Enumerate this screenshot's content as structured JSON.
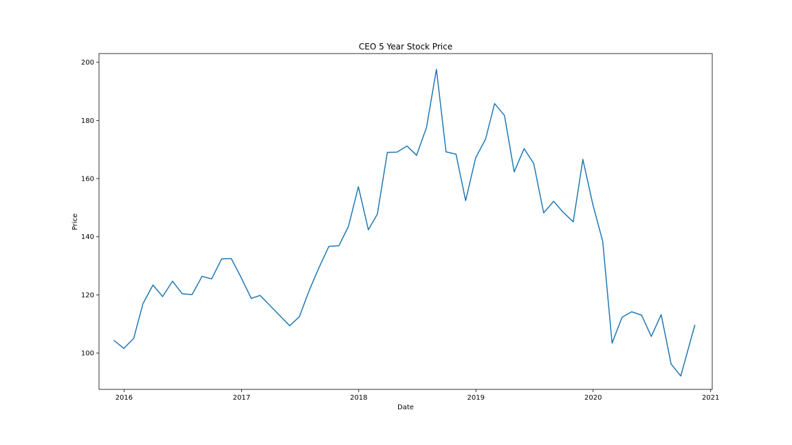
{
  "chart_data": {
    "type": "line",
    "title": "CEO 5 Year Stock Price",
    "xlabel": "Date",
    "ylabel": "Price",
    "grid": false,
    "legend": false,
    "color": "#1f77b4",
    "xlim": [
      "2015-10-15",
      "2021-01-06"
    ],
    "ylim": [
      87.5,
      203
    ],
    "x_ticks": [
      "2016",
      "2017",
      "2018",
      "2019",
      "2020",
      "2021"
    ],
    "y_ticks": [
      "100",
      "120",
      "140",
      "160",
      "180",
      "200"
    ],
    "series": [
      {
        "x": [
          "2015-11-30",
          "2015-12-31",
          "2016-01-31",
          "2016-02-29",
          "2016-03-31",
          "2016-04-30",
          "2016-05-31",
          "2016-06-30",
          "2016-07-31",
          "2016-08-31",
          "2016-09-30",
          "2016-10-31",
          "2016-11-30",
          "2016-12-31",
          "2017-01-31",
          "2017-02-28",
          "2017-03-31",
          "2017-04-30",
          "2017-05-31",
          "2017-06-30",
          "2017-07-31",
          "2017-08-31",
          "2017-09-30",
          "2017-10-31",
          "2017-11-30",
          "2017-12-31",
          "2018-01-31",
          "2018-02-28",
          "2018-03-31",
          "2018-04-30",
          "2018-05-31",
          "2018-06-30",
          "2018-07-31",
          "2018-08-31",
          "2018-09-30",
          "2018-10-31",
          "2018-11-30",
          "2018-12-31",
          "2019-01-31",
          "2019-02-28",
          "2019-03-31",
          "2019-04-30",
          "2019-05-31",
          "2019-06-30",
          "2019-07-31",
          "2019-08-31",
          "2019-09-30",
          "2019-10-31",
          "2019-11-30",
          "2019-12-31",
          "2020-01-31",
          "2020-02-29",
          "2020-03-31",
          "2020-04-30",
          "2020-05-31",
          "2020-06-30",
          "2020-07-31",
          "2020-08-31",
          "2020-09-30",
          "2020-10-31",
          "2020-11-13"
        ],
        "values": [
          104.4,
          101.6,
          105.0,
          117.0,
          123.4,
          119.4,
          124.7,
          120.4,
          120.1,
          126.4,
          125.5,
          132.4,
          132.5,
          125.9,
          118.8,
          119.8,
          116.3,
          112.9,
          109.4,
          112.5,
          121.6,
          129.6,
          136.7,
          136.9,
          143.6,
          157.2,
          142.4,
          147.8,
          169.0,
          169.1,
          171.2,
          168.0,
          177.6,
          197.6,
          169.2,
          168.4,
          152.4,
          167.1,
          173.6,
          185.8,
          181.7,
          162.3,
          170.3,
          165.2,
          148.2,
          152.2,
          148.4,
          145.1,
          166.6,
          151.1,
          138.4,
          103.4,
          112.3,
          114.2,
          113.0,
          105.7,
          113.2,
          96.2,
          92.1,
          104.5,
          109.7
        ]
      }
    ]
  }
}
